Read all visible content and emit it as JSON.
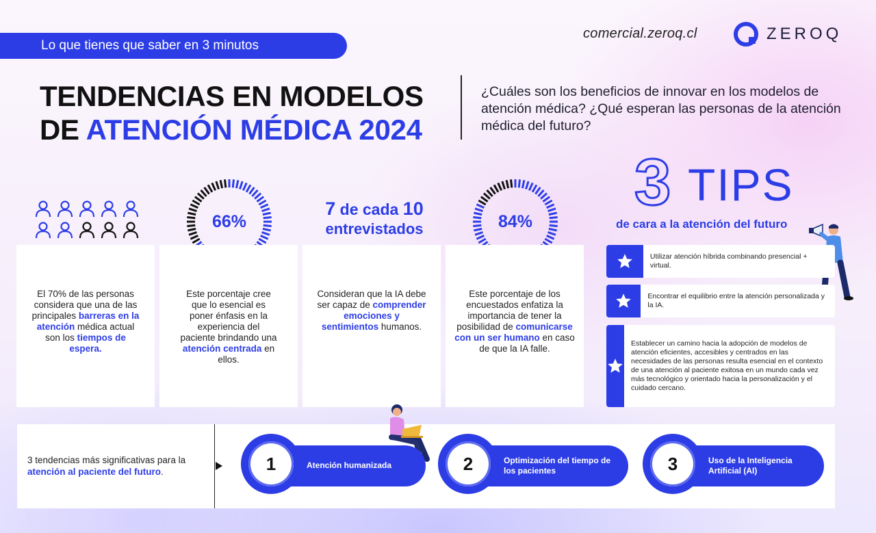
{
  "header": {
    "banner": "Lo que tienes que saber en 3 minutos",
    "site": "comercial.zeroq.cl",
    "logo_text": "ZEROQ"
  },
  "title": {
    "line1": "TENDENCIAS EN MODELOS",
    "line2_prefix": "DE ",
    "line2_accent": "ATENCIÓN MÉDICA 2024"
  },
  "question": "¿Cuáles son los beneficios de innovar en los modelos de atención médica? ¿Qué esperan las personas de la atención médica del futuro?",
  "stats": {
    "people": {
      "total": 10,
      "highlighted": 7
    },
    "card1": {
      "t1": "El 70% de las personas considera que una de las principales ",
      "h1": "barreras en la atención",
      "t2": " médica actual son los ",
      "h2": "tiempos de espera."
    },
    "ring1": {
      "label": "66%",
      "value": 66
    },
    "card2": {
      "t1": "Este porcentaje cree que lo esencial es poner énfasis en la experiencia del paciente brindando una ",
      "h1": "atención centrada",
      "t2": " en ellos."
    },
    "seven": {
      "n1": "7",
      "mid": " de cada ",
      "n2": "10",
      "line2": "entrevistados"
    },
    "card3": {
      "t1": "Consideran que la IA debe ser capaz de ",
      "h1": "comprender emociones y sentimientos",
      "t2": " humanos."
    },
    "ring2": {
      "label": "84%",
      "value": 84
    },
    "card4": {
      "t1": "Este porcentaje de los encuestados enfatiza la importancia de tener la posibilidad de ",
      "h1": "comunicarse con un ser humano",
      "t2": " en caso de que la IA falle."
    }
  },
  "tips": {
    "number": "3",
    "word": "TIPS",
    "subtitle": "de cara a la atención del futuro",
    "items": [
      "Utilizar atención híbrida combinando presencial + virtual.",
      "Encontrar el equilibrio entre la atención personalizada y la IA.",
      "Establecer un camino hacia la adopción de modelos de atención eficientes, accesibles y centrados en las necesidades de las personas resulta esencial en el contexto de una atención al paciente exitosa en un mundo cada vez más tecnológico y orientado hacia la personalización y el cuidado cercano."
    ]
  },
  "trends": {
    "intro_t1": "3 tendencias más significativas para la ",
    "intro_h1": "atención al paciente del futuro",
    "intro_t2": ".",
    "items": [
      {
        "num": "1",
        "label": "Atención humanizada"
      },
      {
        "num": "2",
        "label": "Optimización del tiempo de los pacientes"
      },
      {
        "num": "3",
        "label": "Uso de la Inteligencia Artificial (AI)"
      }
    ]
  },
  "colors": {
    "accent": "#2d3de6",
    "text": "#111111",
    "card": "#ffffff"
  },
  "icons": [
    "person-icon",
    "star-icon",
    "megaphone-man-illustration",
    "woman-laptop-illustration",
    "arrow-right-icon"
  ]
}
